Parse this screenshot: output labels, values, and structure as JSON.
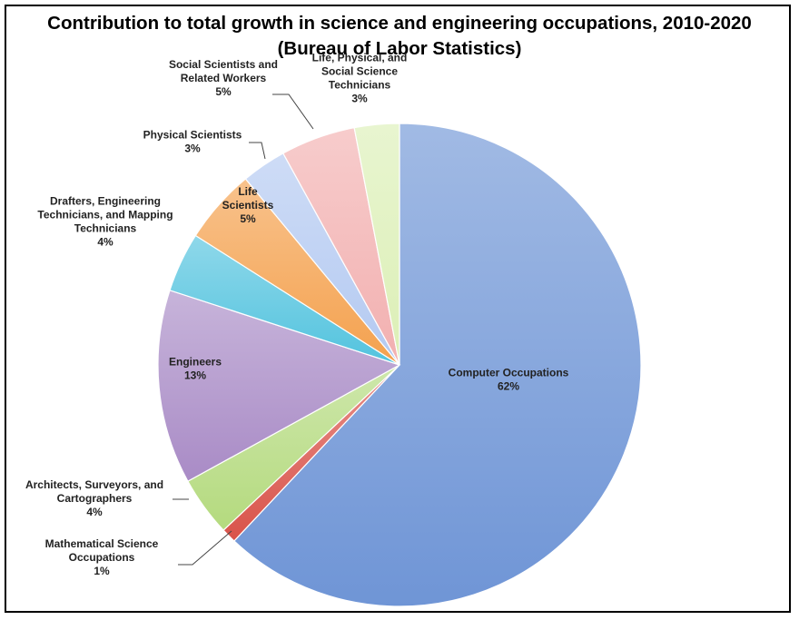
{
  "chart_data": {
    "type": "pie",
    "title": "Contribution to total growth in science and engineering occupations, 2010-2020",
    "subtitle": "(Bureau of Labor Statistics)",
    "slices": [
      {
        "label": "Computer Occupations",
        "value": 62,
        "value_label": "62%",
        "color": "#6f95d6"
      },
      {
        "label": "Mathematical Science Occupations",
        "value": 1,
        "value_label": "1%",
        "color": "#d9534a"
      },
      {
        "label": "Architects, Surveyors, and Cartographers",
        "value": 4,
        "value_label": "4%",
        "color": "#b4da7e"
      },
      {
        "label": "Engineers",
        "value": 13,
        "value_label": "13%",
        "color": "#a98bc6"
      },
      {
        "label": "Drafters, Engineering Technicians, and Mapping Technicians",
        "value": 4,
        "value_label": "4%",
        "color": "#52c3de"
      },
      {
        "label": "Life Scientists",
        "value": 5,
        "value_label": "5%",
        "color": "#f4a14e"
      },
      {
        "label": "Physical Scientists",
        "value": 3,
        "value_label": "3%",
        "color": "#b3c9f1"
      },
      {
        "label": "Social Scientists and Related Workers",
        "value": 5,
        "value_label": "5%",
        "color": "#f2b0b0"
      },
      {
        "label": "Life, Physical, and Social Science Technicians",
        "value": 3,
        "value_label": "3%",
        "color": "#dcefb6"
      }
    ]
  }
}
